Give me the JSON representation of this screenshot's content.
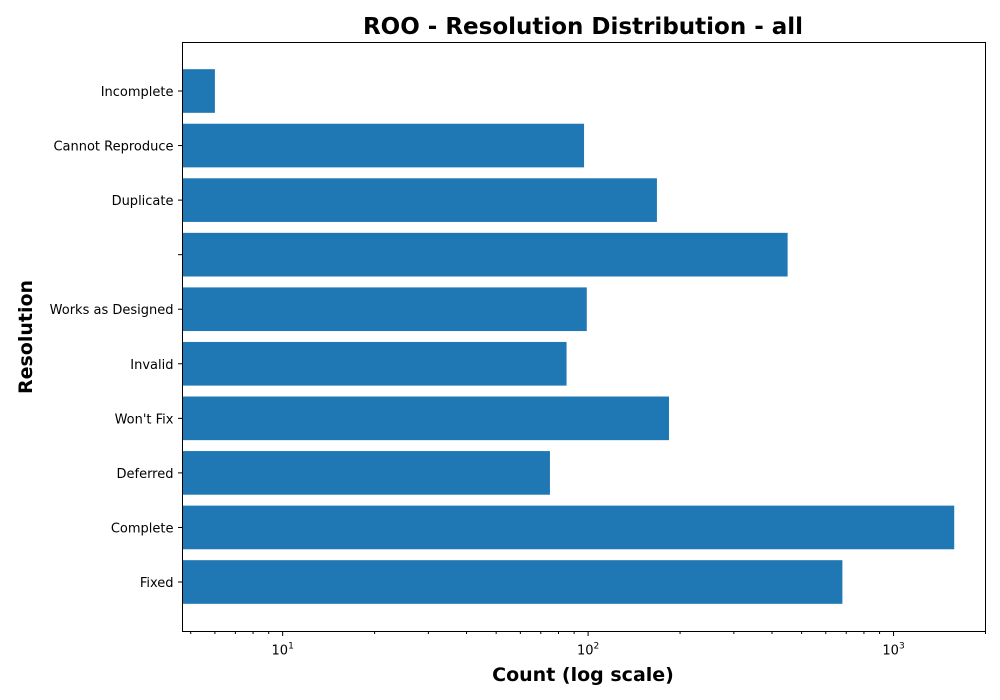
{
  "chart_data": {
    "type": "bar",
    "orientation": "horizontal",
    "title": "ROO - Resolution Distribution - all",
    "xlabel": "Count (log scale)",
    "ylabel": "Resolution",
    "x_scale": "log",
    "xlim": [
      4.7,
      2000
    ],
    "x_ticks": [
      {
        "value": 10,
        "base": "10",
        "exponent": "1"
      },
      {
        "value": 100,
        "base": "10",
        "exponent": "2"
      },
      {
        "value": 1000,
        "base": "10",
        "exponent": "3"
      }
    ],
    "categories": [
      "Incomplete",
      "Cannot Reproduce",
      "Duplicate",
      "",
      "Works as Designed",
      "Invalid",
      "Won't Fix",
      "Deferred",
      "Complete",
      "Fixed"
    ],
    "values": [
      6,
      97,
      168,
      450,
      99,
      85,
      184,
      75,
      1580,
      680
    ],
    "grid": false,
    "legend": "none",
    "bar_color": "#1f77b4"
  }
}
